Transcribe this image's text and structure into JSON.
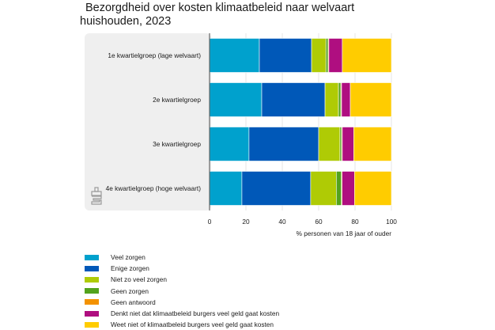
{
  "chart_data": {
    "type": "bar",
    "orientation": "horizontal",
    "stacked": true,
    "title": "Bezorgdheid over kosten klimaatbeleid naar welvaart huishouden, 2023",
    "xlabel": "% personen van 18 jaar of ouder",
    "ylabel": "",
    "xlim": [
      0,
      100
    ],
    "xticks": [
      0,
      20,
      40,
      60,
      80,
      100
    ],
    "grid": true,
    "legend_position": "bottom-left",
    "categories": [
      "1e kwartielgroep (lage welvaart)",
      "2e kwartielgroep",
      "3e kwartielgroep",
      "4e kwartielgroep (hoge welvaart)"
    ],
    "series": [
      {
        "name": "Veel zorgen",
        "color": "#00a1cd",
        "values": [
          27.4,
          28.7,
          21.7,
          17.8
        ]
      },
      {
        "name": "Enige zorgen",
        "color": "#0058b8",
        "values": [
          28.7,
          34.8,
          38.3,
          37.8
        ]
      },
      {
        "name": "Niet zo veel zorgen",
        "color": "#afcb05",
        "values": [
          7.9,
          7.4,
          11.7,
          14.1
        ]
      },
      {
        "name": "Geen zorgen",
        "color": "#53a31d",
        "values": [
          1.2,
          1.3,
          0.9,
          2.8
        ]
      },
      {
        "name": "Geen antwoord",
        "color": "#f39200",
        "values": [
          0.4,
          0.4,
          0.4,
          0.4
        ]
      },
      {
        "name": "Denkt niet dat klimaatbeleid burgers veel geld gaat kosten",
        "color": "#af0e80",
        "values": [
          7.4,
          4.8,
          6.3,
          6.8
        ]
      },
      {
        "name": "Weet niet of klimaatbeleid burgers veel geld gaat kosten",
        "color": "#ffcc00",
        "values": [
          27.0,
          22.6,
          20.7,
          20.3
        ]
      }
    ]
  },
  "title": {
    "text": "Bezorgdheid over kosten klimaatbeleid naar welvaart huishouden, 2023"
  },
  "branding": {
    "logo_icon": "cbs-logo-icon"
  }
}
